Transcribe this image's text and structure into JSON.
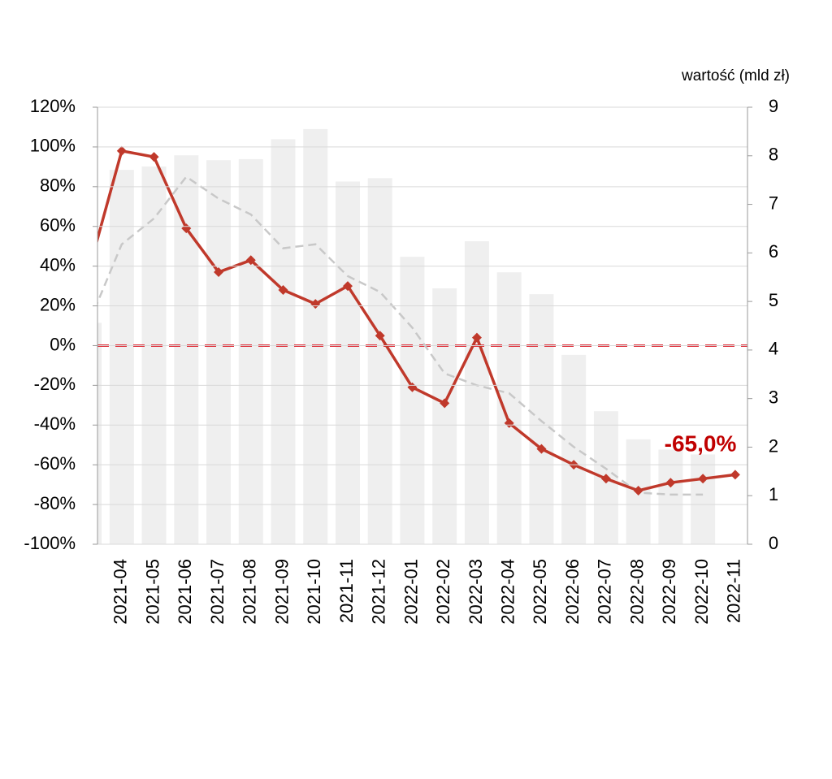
{
  "chart_data": {
    "type": "combo",
    "y2_label": "wartość (mld zł)",
    "annotation": "-65,0%",
    "annotation_color": "#c00000",
    "categories": [
      null,
      "2021-04",
      "2021-05",
      "2021-06",
      "2021-07",
      "2021-08",
      "2021-09",
      "2021-10",
      "2021-11",
      "2021-12",
      "2022-01",
      "2022-02",
      "2022-03",
      "2022-04",
      "2022-05",
      "2022-06",
      "2022-07",
      "2022-08",
      "2022-09",
      "2022-10",
      "2022-11"
    ],
    "series": [
      {
        "type": "bar",
        "axis": "y2",
        "color": "#efefef",
        "values": [
          4.56,
          7.71,
          7.78,
          8.01,
          7.91,
          7.93,
          8.34,
          8.55,
          7.47,
          7.54,
          5.92,
          5.27,
          6.24,
          5.6,
          5.15,
          3.9,
          2.74,
          2.16,
          1.95,
          1.85,
          null
        ]
      },
      {
        "type": "line",
        "style": "dashed",
        "color": "#c8c8c8",
        "values": [
          12,
          51,
          64,
          85,
          74,
          66,
          49,
          51,
          35,
          27,
          9,
          -14,
          -20,
          -24,
          -38,
          -51,
          -62,
          -74,
          -75,
          -75,
          null
        ]
      },
      {
        "type": "line",
        "style": "solid",
        "marker": "diamond",
        "color": "#c0392b",
        "values": [
          39,
          98,
          95,
          59,
          37,
          43,
          28,
          21,
          30,
          5,
          -21,
          -29,
          4,
          -39,
          -52,
          -60,
          -67,
          -73,
          -69,
          -67,
          -65
        ]
      }
    ],
    "reference_line": {
      "value": 0,
      "color": "#e0323c"
    },
    "ylim": [
      -100,
      120
    ],
    "yticks": [
      {
        "value": -100,
        "label": "-100%"
      },
      {
        "value": -80,
        "label": "-80%"
      },
      {
        "value": -60,
        "label": "-60%"
      },
      {
        "value": -40,
        "label": "-40%"
      },
      {
        "value": -20,
        "label": "-20%"
      },
      {
        "value": 0,
        "label": "0%"
      },
      {
        "value": 20,
        "label": "20%"
      },
      {
        "value": 40,
        "label": "40%"
      },
      {
        "value": 60,
        "label": "60%"
      },
      {
        "value": 80,
        "label": "80%"
      },
      {
        "value": 100,
        "label": "100%"
      },
      {
        "value": 120,
        "label": "120%"
      }
    ],
    "y2lim": [
      0,
      9
    ],
    "y2ticks": [
      0,
      1,
      2,
      3,
      4,
      5,
      6,
      7,
      8,
      9
    ],
    "grid": true
  }
}
